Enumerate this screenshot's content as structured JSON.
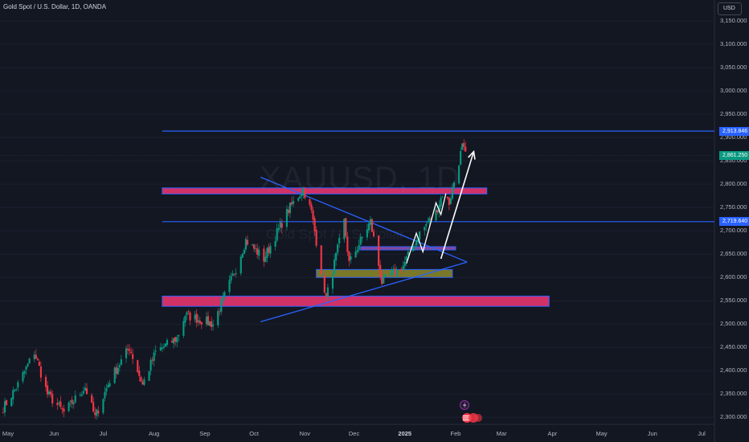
{
  "header": {
    "symbol_line": "Gold Spot / U.S. Dollar, 1D, OANDA",
    "currency_button": "USD"
  },
  "watermark": {
    "symbol": "XAUUSD, 1D",
    "description": "Gold Spot / U.S. Dollar"
  },
  "price_tags": [
    {
      "id": "resistance",
      "label": "2,913.846",
      "value": 2913.846,
      "color": "#2962ff"
    },
    {
      "id": "last",
      "label": "2,861.250",
      "value": 2861.25,
      "color": "#089981"
    },
    {
      "id": "support",
      "label": "2,719.640",
      "value": 2719.64,
      "color": "#2962ff"
    }
  ],
  "colors": {
    "up": "#089981",
    "down": "#f23645",
    "zone_pink": "#f23672",
    "zone_olive": "#8d8a2a",
    "zone_purple": "#9b4db0",
    "trendline": "#2962ff",
    "arrow": "#ffffff"
  },
  "icons": [
    "lightning-icon",
    "us-flag-icon"
  ],
  "chart_data": {
    "type": "candlestick",
    "title": "Gold Spot / U.S. Dollar, 1D, OANDA",
    "xlabel": "",
    "ylabel": "",
    "ylim": [
      2285,
      3195
    ],
    "y_ticks": [
      "3,150.000",
      "3,100.000",
      "3,050.000",
      "3,000.000",
      "2,950.000",
      "2,900.000",
      "2,850.000",
      "2,800.000",
      "2,750.000",
      "2,700.000",
      "2,650.000",
      "2,600.000",
      "2,550.000",
      "2,500.000",
      "2,450.000",
      "2,400.000",
      "2,350.000",
      "2,300.000"
    ],
    "x_ticks": [
      "May",
      "Jun",
      "Jul",
      "Aug",
      "Sep",
      "Oct",
      "Nov",
      "Dec",
      "2025",
      "Feb",
      "Mar",
      "Apr",
      "May",
      "Jun",
      "Jul"
    ],
    "x_ticks_bold": [
      "2025"
    ],
    "keypoints": [
      [
        "2024-05-01",
        2320
      ],
      [
        "2024-05-10",
        2370
      ],
      [
        "2024-05-20",
        2440
      ],
      [
        "2024-05-28",
        2350
      ],
      [
        "2024-06-07",
        2310
      ],
      [
        "2024-06-20",
        2365
      ],
      [
        "2024-06-26",
        2300
      ],
      [
        "2024-07-05",
        2380
      ],
      [
        "2024-07-17",
        2450
      ],
      [
        "2024-07-25",
        2370
      ],
      [
        "2024-08-02",
        2440
      ],
      [
        "2024-08-15",
        2470
      ],
      [
        "2024-08-20",
        2520
      ],
      [
        "2024-09-06",
        2500
      ],
      [
        "2024-09-20",
        2620
      ],
      [
        "2024-09-26",
        2680
      ],
      [
        "2024-10-07",
        2640
      ],
      [
        "2024-10-22",
        2745
      ],
      [
        "2024-10-31",
        2790
      ],
      [
        "2024-11-05",
        2740
      ],
      [
        "2024-11-14",
        2555
      ],
      [
        "2024-11-25",
        2720
      ],
      [
        "2024-11-28",
        2630
      ],
      [
        "2024-12-11",
        2720
      ],
      [
        "2024-12-18",
        2590
      ],
      [
        "2024-12-31",
        2625
      ],
      [
        "2025-01-10",
        2695
      ],
      [
        "2025-01-20",
        2740
      ],
      [
        "2025-01-24",
        2780
      ],
      [
        "2025-01-28",
        2760
      ],
      [
        "2025-02-05",
        2880
      ],
      [
        "2025-02-07",
        2861
      ]
    ],
    "horizontal_lines": [
      {
        "name": "resistance",
        "value": 2913.846,
        "from": "2024-08-06",
        "to": "2025-07-31"
      },
      {
        "name": "support",
        "value": 2719.64,
        "from": "2024-08-06",
        "to": "2025-07-31"
      }
    ],
    "zones": [
      {
        "name": "upper-pink-zone",
        "from": "2024-08-06",
        "to": "2025-02-20",
        "top": 2792,
        "bottom": 2779,
        "color": "#f23672"
      },
      {
        "name": "lower-pink-zone",
        "from": "2024-08-06",
        "to": "2025-03-30",
        "top": 2560,
        "bottom": 2538,
        "color": "#f23672"
      },
      {
        "name": "olive-zone",
        "from": "2024-11-08",
        "to": "2025-01-30",
        "top": 2617,
        "bottom": 2600,
        "color": "#8d8a2a"
      },
      {
        "name": "purple-zone",
        "from": "2024-12-05",
        "to": "2025-02-01",
        "top": 2666,
        "bottom": 2659,
        "color": "#9b4db0"
      }
    ],
    "trendlines": [
      {
        "name": "descending-trendline",
        "from": [
          "2024-10-05",
          2815
        ],
        "to": [
          "2025-02-08",
          2633
        ]
      },
      {
        "name": "ascending-trendline",
        "from": [
          "2024-10-05",
          2505
        ],
        "to": [
          "2025-02-08",
          2633
        ]
      }
    ],
    "arrows": [
      {
        "name": "projection-arrow",
        "from": [
          "2025-01-23",
          2640
        ],
        "to": [
          "2025-02-12",
          2870
        ]
      }
    ],
    "path_lines": [
      {
        "name": "zigzag-path",
        "points": [
          [
            "2025-01-02",
            2630
          ],
          [
            "2025-01-08",
            2695
          ],
          [
            "2025-01-12",
            2655
          ],
          [
            "2025-01-20",
            2760
          ],
          [
            "2025-01-23",
            2735
          ],
          [
            "2025-01-26",
            2780
          ]
        ]
      }
    ],
    "grid": false,
    "legend": "none"
  }
}
